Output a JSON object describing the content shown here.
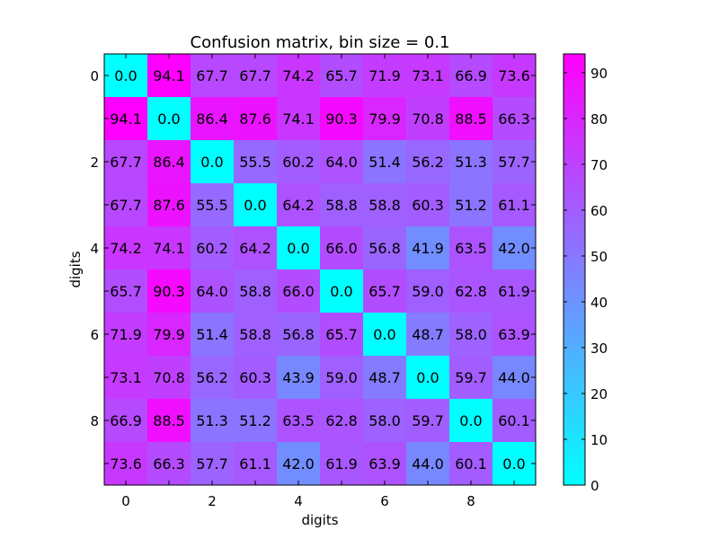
{
  "chart_data": {
    "type": "heatmap",
    "title": "Confusion matrix, bin size = 0.1",
    "xlabel": "digits",
    "ylabel": "digits",
    "x_ticks": [
      "0",
      "2",
      "4",
      "6",
      "8"
    ],
    "y_ticks": [
      "0",
      "2",
      "4",
      "6",
      "8"
    ],
    "colorbar": {
      "ticks": [
        "0",
        "10",
        "20",
        "30",
        "40",
        "50",
        "60",
        "70",
        "80",
        "90"
      ],
      "min": 0,
      "max": 94.1,
      "color_low": "#00ffff",
      "color_high": "#ff00ff",
      "colormap": "cool"
    },
    "rows": [
      "0",
      "1",
      "2",
      "3",
      "4",
      "5",
      "6",
      "7",
      "8",
      "9"
    ],
    "columns": [
      "0",
      "1",
      "2",
      "3",
      "4",
      "5",
      "6",
      "7",
      "8",
      "9"
    ],
    "matrix": [
      [
        0.0,
        94.1,
        67.7,
        67.7,
        74.2,
        65.7,
        71.9,
        73.1,
        66.9,
        73.6
      ],
      [
        94.1,
        0.0,
        86.4,
        87.6,
        74.1,
        90.3,
        79.9,
        70.8,
        88.5,
        66.3
      ],
      [
        67.7,
        86.4,
        0.0,
        55.5,
        60.2,
        64.0,
        51.4,
        56.2,
        51.3,
        57.7
      ],
      [
        67.7,
        87.6,
        55.5,
        0.0,
        64.2,
        58.8,
        58.8,
        60.3,
        51.2,
        61.1
      ],
      [
        74.2,
        74.1,
        60.2,
        64.2,
        0.0,
        66.0,
        56.8,
        41.9,
        63.5,
        42.0
      ],
      [
        65.7,
        90.3,
        64.0,
        58.8,
        66.0,
        0.0,
        65.7,
        59.0,
        62.8,
        61.9
      ],
      [
        71.9,
        79.9,
        51.4,
        58.8,
        56.8,
        65.7,
        0.0,
        48.7,
        58.0,
        63.9
      ],
      [
        73.1,
        70.8,
        56.2,
        60.3,
        43.9,
        59.0,
        48.7,
        0.0,
        59.7,
        44.0
      ],
      [
        66.9,
        88.5,
        51.3,
        51.2,
        63.5,
        62.8,
        58.0,
        59.7,
        0.0,
        60.1
      ],
      [
        73.6,
        66.3,
        57.7,
        61.1,
        42.0,
        61.9,
        63.9,
        44.0,
        60.1,
        0.0
      ]
    ]
  }
}
